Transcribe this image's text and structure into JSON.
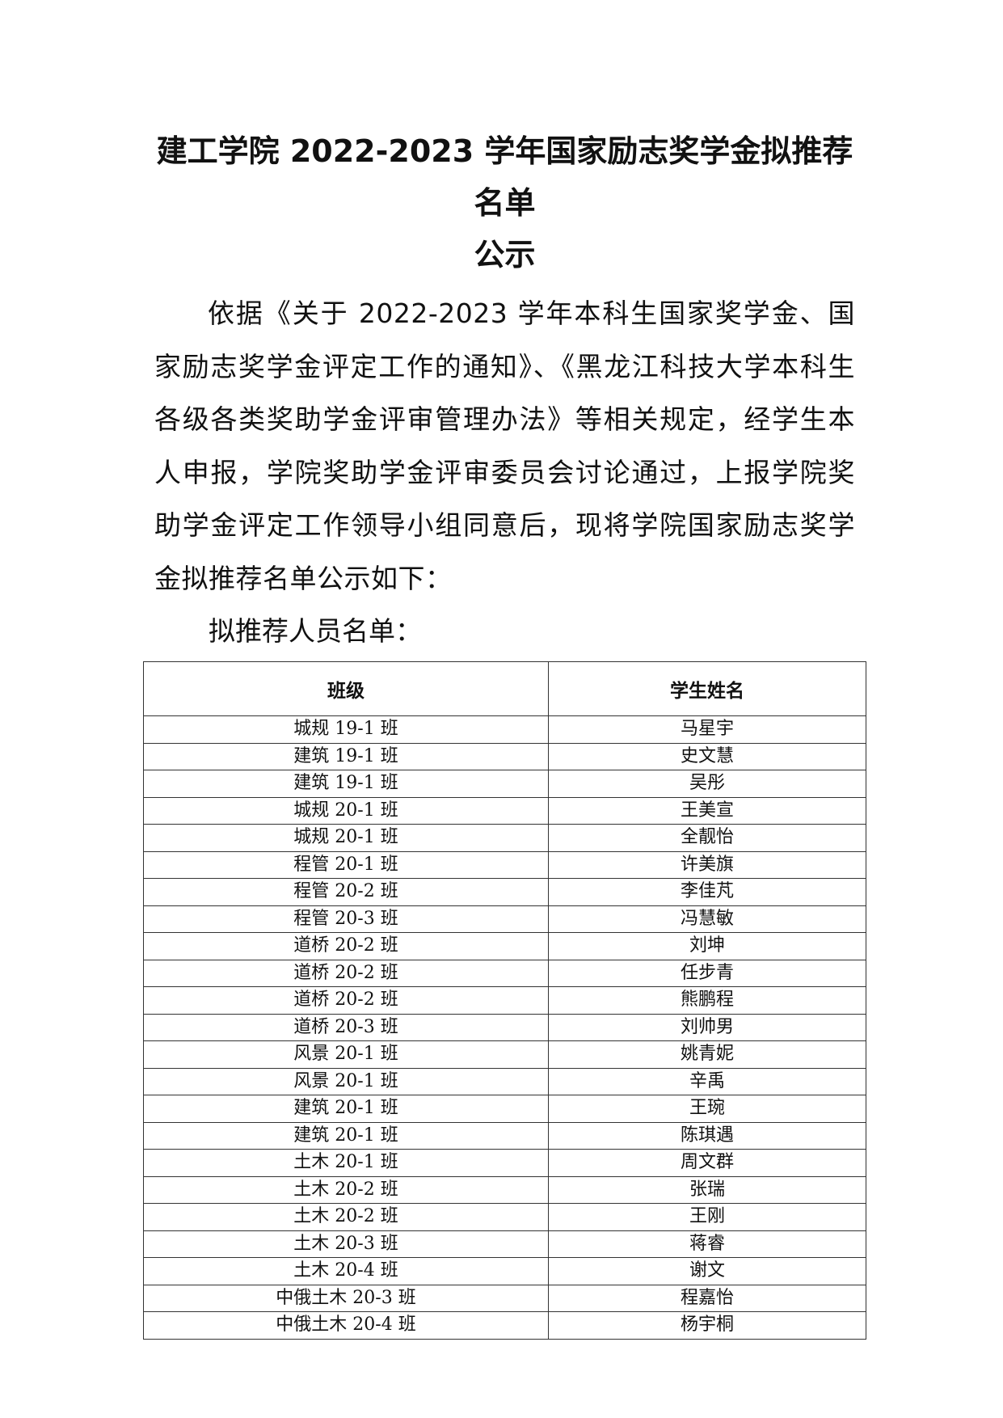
{
  "document": {
    "title_line1": "建工学院 2022-2023 学年国家励志奖学金拟推荐名单",
    "title_line2": "公示",
    "body": "依据《关于 2022-2023 学年本科生国家奖学金、国家励志奖学金评定工作的通知》、《黑龙江科技大学本科生各级各类奖助学金评审管理办法》等相关规定，经学生本人申报，学院奖助学金评审委员会讨论通过，上报学院奖助学金评定工作领导小组同意后，现将学院国家励志奖学金拟推荐名单公示如下：",
    "list_heading": "拟推荐人员名单：",
    "table": {
      "headers": [
        "班级",
        "学生姓名"
      ],
      "rows": [
        [
          "城规 19-1 班",
          "马星宇"
        ],
        [
          "建筑 19-1 班",
          "史文慧"
        ],
        [
          "建筑 19-1 班",
          "吴彤"
        ],
        [
          "城规 20-1 班",
          "王美宣"
        ],
        [
          "城规 20-1 班",
          "全靓怡"
        ],
        [
          "程管 20-1 班",
          "许美旗"
        ],
        [
          "程管 20-2 班",
          "李佳芃"
        ],
        [
          "程管 20-3 班",
          "冯慧敏"
        ],
        [
          "道桥 20-2 班",
          "刘坤"
        ],
        [
          "道桥 20-2 班",
          "任步青"
        ],
        [
          "道桥 20-2 班",
          "熊鹏程"
        ],
        [
          "道桥 20-3 班",
          "刘帅男"
        ],
        [
          "风景 20-1 班",
          "姚青妮"
        ],
        [
          "风景 20-1 班",
          "辛禹"
        ],
        [
          "建筑 20-1 班",
          "王琬"
        ],
        [
          "建筑 20-1 班",
          "陈琪遇"
        ],
        [
          "土木 20-1 班",
          "周文群"
        ],
        [
          "土木 20-2 班",
          "张瑞"
        ],
        [
          "土木 20-2 班",
          "王刚"
        ],
        [
          "土木 20-3 班",
          "蒋睿"
        ],
        [
          "土木 20-4 班",
          "谢文"
        ],
        [
          "中俄土木 20-3 班",
          "程嘉怡"
        ],
        [
          "中俄土木 20-4 班",
          "杨宇桐"
        ]
      ]
    }
  }
}
